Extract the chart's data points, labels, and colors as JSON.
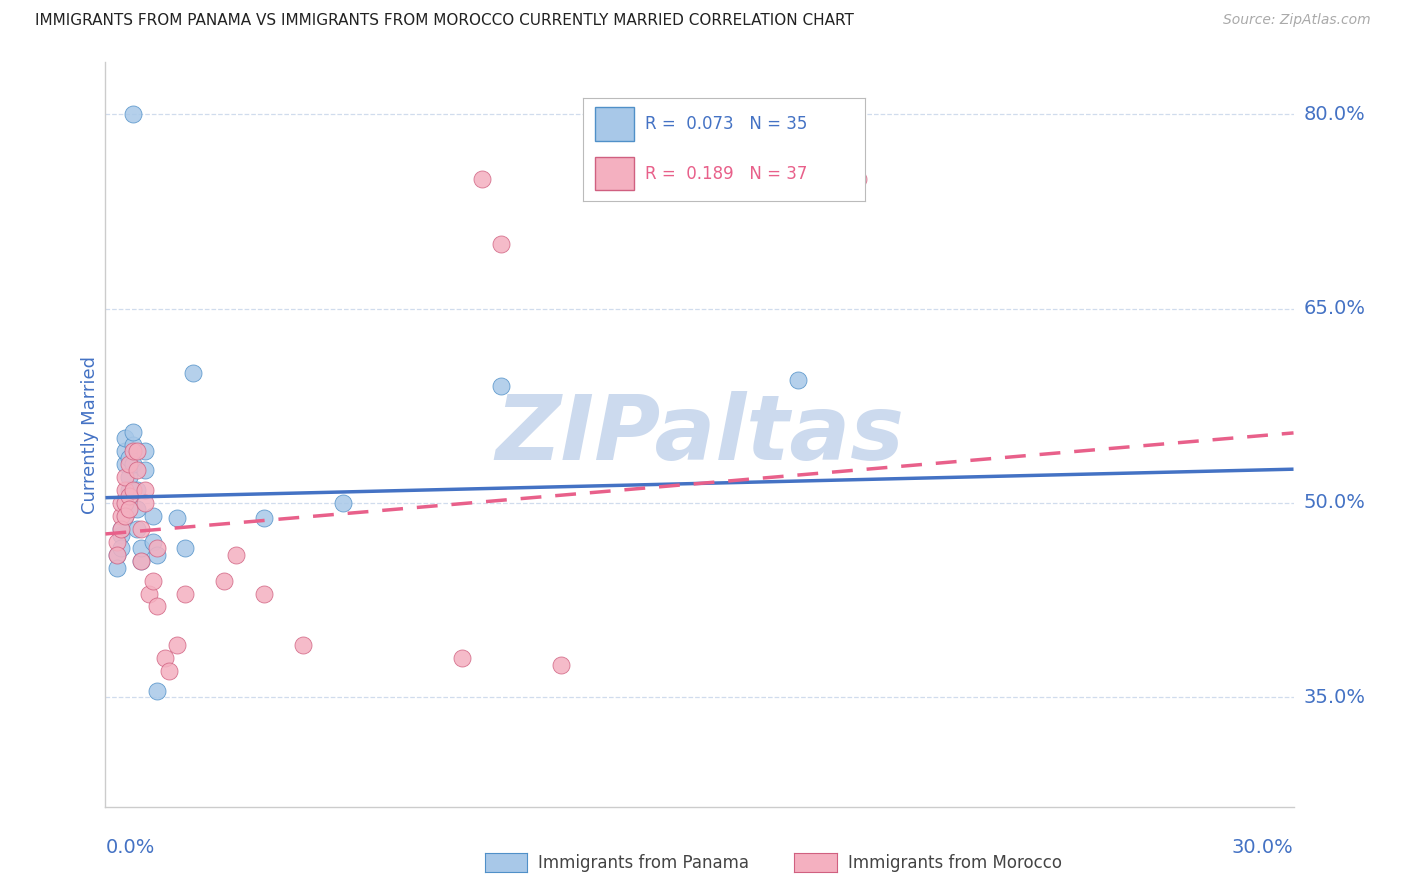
{
  "title": "IMMIGRANTS FROM PANAMA VS IMMIGRANTS FROM MOROCCO CURRENTLY MARRIED CORRELATION CHART",
  "source": "Source: ZipAtlas.com",
  "ylabel": "Currently Married",
  "yticks": [
    0.35,
    0.5,
    0.65,
    0.8
  ],
  "ytick_labels": [
    "35.0%",
    "50.0%",
    "65.0%",
    "80.0%"
  ],
  "xmin": 0.0,
  "xmax": 0.3,
  "ymin": 0.265,
  "ymax": 0.84,
  "blue_scatter": "#a8c8e8",
  "blue_edge": "#5090c8",
  "pink_scatter": "#f4b0c0",
  "pink_edge": "#d06080",
  "blue_trend": "#4472c4",
  "pink_trend": "#e8608a",
  "axis_color": "#4472c4",
  "grid_color": "#d0dced",
  "watermark_color": "#ccdaee",
  "panama_points_x": [
    0.003,
    0.003,
    0.004,
    0.004,
    0.004,
    0.005,
    0.005,
    0.005,
    0.005,
    0.005,
    0.006,
    0.006,
    0.006,
    0.007,
    0.007,
    0.007,
    0.008,
    0.008,
    0.008,
    0.009,
    0.009,
    0.01,
    0.01,
    0.012,
    0.012,
    0.013,
    0.013,
    0.018,
    0.02,
    0.022,
    0.04,
    0.06,
    0.1,
    0.175,
    0.007
  ],
  "panama_points_y": [
    0.46,
    0.45,
    0.475,
    0.465,
    0.48,
    0.5,
    0.49,
    0.53,
    0.54,
    0.55,
    0.52,
    0.51,
    0.535,
    0.545,
    0.53,
    0.555,
    0.495,
    0.51,
    0.48,
    0.455,
    0.465,
    0.54,
    0.525,
    0.47,
    0.49,
    0.46,
    0.355,
    0.488,
    0.465,
    0.6,
    0.488,
    0.5,
    0.59,
    0.595,
    0.8
  ],
  "morocco_points_x": [
    0.003,
    0.003,
    0.004,
    0.004,
    0.004,
    0.005,
    0.005,
    0.005,
    0.005,
    0.006,
    0.006,
    0.006,
    0.007,
    0.007,
    0.008,
    0.008,
    0.009,
    0.009,
    0.01,
    0.01,
    0.011,
    0.012,
    0.013,
    0.013,
    0.015,
    0.016,
    0.018,
    0.02,
    0.03,
    0.033,
    0.04,
    0.05,
    0.095,
    0.115,
    0.1,
    0.19,
    0.09
  ],
  "morocco_points_y": [
    0.47,
    0.46,
    0.49,
    0.48,
    0.5,
    0.51,
    0.5,
    0.52,
    0.49,
    0.505,
    0.495,
    0.53,
    0.54,
    0.51,
    0.525,
    0.54,
    0.455,
    0.48,
    0.51,
    0.5,
    0.43,
    0.44,
    0.42,
    0.465,
    0.38,
    0.37,
    0.39,
    0.43,
    0.44,
    0.46,
    0.43,
    0.39,
    0.75,
    0.375,
    0.7,
    0.75,
    0.38
  ],
  "panama_trend_x": [
    0.0,
    0.3
  ],
  "panama_trend_y": [
    0.504,
    0.526
  ],
  "morocco_trend_x": [
    0.0,
    0.3
  ],
  "morocco_trend_y": [
    0.476,
    0.554
  ]
}
